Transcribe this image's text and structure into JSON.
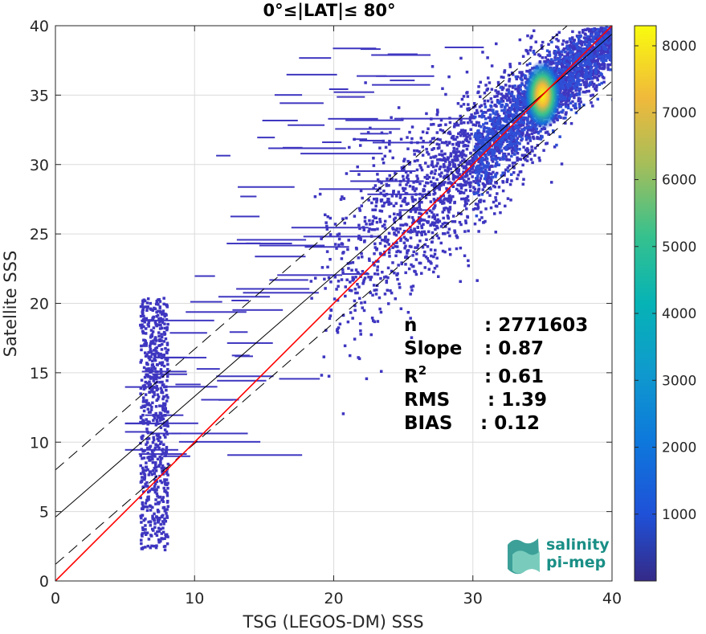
{
  "chart_data": {
    "type": "heatmap",
    "title": "0°≤|LAT|≤ 80°",
    "xlabel": "TSG (LEGOS-DM) SSS",
    "ylabel": "Satellite SSS",
    "xlim": [
      0,
      40
    ],
    "ylim": [
      0,
      40
    ],
    "xticks": [
      "0",
      "10",
      "20",
      "30",
      "40"
    ],
    "yticks": [
      "0",
      "5",
      "10",
      "15",
      "20",
      "25",
      "30",
      "35",
      "40"
    ],
    "grid": true,
    "colormap": "parula",
    "colorbar": {
      "range": [
        1,
        8300
      ],
      "ticks": [
        "1000",
        "2000",
        "3000",
        "4000",
        "5000",
        "6000",
        "7000",
        "8000"
      ],
      "tick_values": [
        1000,
        2000,
        3000,
        4000,
        5000,
        6000,
        7000,
        8000
      ]
    },
    "density_peak": {
      "x": 35.0,
      "y": 35.0,
      "count": 8200
    },
    "lines": {
      "identity": {
        "color": "#ff0000",
        "points": [
          [
            0,
            0
          ],
          [
            40,
            40
          ]
        ]
      },
      "fit": {
        "color": "#000000",
        "slope": 0.87,
        "intercept": 4.6
      },
      "fit_upper": {
        "color": "#000000",
        "dash": true,
        "slope": 0.87,
        "intercept": 8.0
      },
      "fit_lower": {
        "color": "#000000",
        "dash": true,
        "slope": 0.87,
        "intercept": 1.2
      }
    },
    "stats": [
      {
        "label": "n",
        "value": ": 2771603"
      },
      {
        "label": "Slope",
        "value": ": 0.87"
      },
      {
        "label": "R",
        "sup": "2",
        "value": ": 0.61"
      },
      {
        "label": "RMS",
        "value": ": 1.39"
      },
      {
        "label": "BIAS",
        "value": ": 0.12"
      }
    ]
  },
  "logo": {
    "line1": "salinity",
    "line2": "pi-mep",
    "colors": [
      "#1a8f86",
      "#3bb5a5",
      "#7fd0c0"
    ]
  }
}
